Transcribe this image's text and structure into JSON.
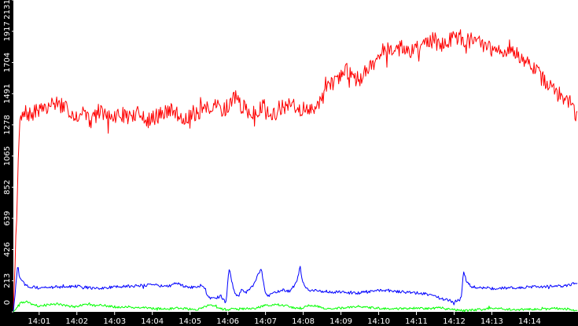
{
  "chart_data": {
    "type": "line",
    "title": "",
    "xlabel": "",
    "ylabel": "",
    "ylim": [
      0,
      2131
    ],
    "xlim": [
      "14:00:19",
      "14:15:17"
    ],
    "grid": false,
    "legend": "none",
    "background": "#ffffff",
    "frame_color": "#000000",
    "y_ticks": [
      "0",
      "213",
      "426",
      "639",
      "852",
      "1065",
      "1278",
      "1491",
      "1704",
      "1917",
      "2131"
    ],
    "x_ticks": [
      "14:01",
      "14:02",
      "14:03",
      "14:04",
      "14:05",
      "14:06",
      "14:07",
      "14:08",
      "14:09",
      "14:10",
      "14:11",
      "14:12",
      "14:13",
      "14:14"
    ],
    "x_time_unit": "seconds",
    "x_sample_interval": 10,
    "series": [
      {
        "color": "#ff0000",
        "x": [
          "14:00:19",
          "14:00:29",
          "14:00:39",
          "14:00:49",
          "14:00:59",
          "14:01:09",
          "14:01:19",
          "14:01:29",
          "14:01:39",
          "14:01:49",
          "14:01:59",
          "14:02:09",
          "14:02:19",
          "14:02:29",
          "14:02:39",
          "14:02:49",
          "14:02:59",
          "14:03:09",
          "14:03:19",
          "14:03:29",
          "14:03:39",
          "14:03:49",
          "14:03:59",
          "14:04:09",
          "14:04:19",
          "14:04:29",
          "14:04:39",
          "14:04:49",
          "14:04:59",
          "14:05:09",
          "14:05:19",
          "14:05:29",
          "14:05:39",
          "14:05:49",
          "14:05:59",
          "14:06:09",
          "14:06:19",
          "14:06:29",
          "14:06:39",
          "14:06:49",
          "14:06:59",
          "14:07:09",
          "14:07:19",
          "14:07:29",
          "14:07:39",
          "14:07:49",
          "14:07:59",
          "14:08:09",
          "14:08:19",
          "14:08:29",
          "14:08:39",
          "14:08:49",
          "14:08:59",
          "14:09:09",
          "14:09:19",
          "14:09:29",
          "14:09:39",
          "14:09:49",
          "14:09:59",
          "14:10:09",
          "14:10:19",
          "14:10:29",
          "14:10:39",
          "14:10:49",
          "14:10:59",
          "14:11:09",
          "14:11:19",
          "14:11:29",
          "14:11:39",
          "14:11:49",
          "14:11:59",
          "14:12:09",
          "14:12:19",
          "14:12:29",
          "14:12:39",
          "14:12:49",
          "14:12:59",
          "14:13:09",
          "14:13:19",
          "14:13:29",
          "14:13:39",
          "14:13:49",
          "14:13:59",
          "14:14:09",
          "14:14:19",
          "14:14:29",
          "14:14:39",
          "14:14:49",
          "14:14:59",
          "14:15:09",
          "14:15:17"
        ],
        "values": [
          0,
          1300,
          1360,
          1340,
          1390,
          1370,
          1420,
          1430,
          1390,
          1380,
          1340,
          1370,
          1360,
          1340,
          1380,
          1320,
          1330,
          1350,
          1340,
          1330,
          1360,
          1300,
          1320,
          1340,
          1360,
          1380,
          1350,
          1330,
          1330,
          1350,
          1370,
          1390,
          1410,
          1380,
          1400,
          1480,
          1420,
          1380,
          1350,
          1370,
          1420,
          1340,
          1370,
          1400,
          1430,
          1380,
          1390,
          1360,
          1410,
          1460,
          1530,
          1580,
          1620,
          1650,
          1610,
          1580,
          1640,
          1690,
          1750,
          1790,
          1800,
          1780,
          1820,
          1760,
          1810,
          1830,
          1850,
          1860,
          1820,
          1850,
          1870,
          1880,
          1850,
          1860,
          1840,
          1810,
          1800,
          1790,
          1760,
          1810,
          1760,
          1720,
          1690,
          1650,
          1600,
          1560,
          1510,
          1480,
          1450,
          1410,
          1300
        ]
      },
      {
        "color": "#0000ff",
        "x": [
          "14:00:19",
          "14:00:26",
          "14:00:29",
          "14:00:39",
          "14:00:49",
          "14:00:59",
          "14:01:29",
          "14:01:59",
          "14:02:29",
          "14:02:59",
          "14:03:29",
          "14:03:59",
          "14:04:19",
          "14:04:29",
          "14:04:39",
          "14:04:49",
          "14:04:59",
          "14:05:09",
          "14:05:19",
          "14:05:23",
          "14:05:29",
          "14:05:39",
          "14:05:49",
          "14:05:57",
          "14:05:59",
          "14:06:02",
          "14:06:06",
          "14:06:11",
          "14:06:17",
          "14:06:22",
          "14:06:29",
          "14:06:33",
          "14:06:38",
          "14:06:43",
          "14:06:48",
          "14:06:53",
          "14:06:58",
          "14:07:00",
          "14:07:04",
          "14:07:09",
          "14:07:19",
          "14:07:29",
          "14:07:39",
          "14:07:49",
          "14:07:55",
          "14:07:59",
          "14:08:04",
          "14:08:09",
          "14:08:29",
          "14:08:59",
          "14:09:29",
          "14:09:59",
          "14:10:29",
          "14:10:59",
          "14:11:19",
          "14:11:29",
          "14:11:39",
          "14:11:49",
          "14:11:59",
          "14:12:09",
          "14:12:12",
          "14:12:15",
          "14:12:20",
          "14:12:29",
          "14:12:59",
          "14:13:29",
          "14:13:59",
          "14:14:29",
          "14:14:59",
          "14:15:17"
        ],
        "values": [
          0,
          320,
          230,
          180,
          170,
          165,
          170,
          175,
          160,
          170,
          175,
          185,
          175,
          180,
          200,
          175,
          170,
          165,
          170,
          160,
          100,
          90,
          110,
          60,
          150,
          300,
          220,
          120,
          100,
          160,
          130,
          150,
          170,
          200,
          250,
          300,
          180,
          120,
          110,
          130,
          140,
          150,
          140,
          200,
          310,
          200,
          160,
          150,
          140,
          135,
          130,
          145,
          140,
          130,
          120,
          110,
          90,
          80,
          70,
          80,
          120,
          280,
          200,
          170,
          160,
          165,
          170,
          175,
          180,
          200
        ]
      },
      {
        "color": "#00ff00",
        "x": [
          "14:00:19",
          "14:00:29",
          "14:00:39",
          "14:00:49",
          "14:00:59",
          "14:01:09",
          "14:01:19",
          "14:01:29",
          "14:01:39",
          "14:01:49",
          "14:01:59",
          "14:02:09",
          "14:02:19",
          "14:02:29",
          "14:02:39",
          "14:02:49",
          "14:02:59",
          "14:03:09",
          "14:03:19",
          "14:03:29",
          "14:03:39",
          "14:03:49",
          "14:03:59",
          "14:04:19",
          "14:04:39",
          "14:04:59",
          "14:05:09",
          "14:05:19",
          "14:05:29",
          "14:05:39",
          "14:05:49",
          "14:05:59",
          "14:06:19",
          "14:06:39",
          "14:06:49",
          "14:06:59",
          "14:07:19",
          "14:07:39",
          "14:07:49",
          "14:07:59",
          "14:08:09",
          "14:08:19",
          "14:08:39",
          "14:08:59",
          "14:09:09",
          "14:09:29",
          "14:09:39",
          "14:09:59",
          "14:10:29",
          "14:10:59",
          "14:11:29",
          "14:11:39",
          "14:11:49",
          "14:11:59",
          "14:12:19",
          "14:12:39",
          "14:12:49",
          "14:12:59",
          "14:13:19",
          "14:13:39",
          "14:13:59",
          "14:14:19",
          "14:14:39",
          "14:14:59",
          "14:15:17"
        ],
        "values": [
          0,
          60,
          70,
          50,
          40,
          45,
          50,
          55,
          45,
          40,
          35,
          50,
          55,
          40,
          45,
          40,
          35,
          30,
          35,
          30,
          25,
          30,
          25,
          20,
          25,
          20,
          15,
          25,
          45,
          40,
          20,
          15,
          20,
          25,
          30,
          45,
          50,
          35,
          25,
          30,
          45,
          40,
          20,
          25,
          30,
          40,
          30,
          25,
          20,
          25,
          25,
          30,
          20,
          15,
          10,
          15,
          20,
          25,
          20,
          15,
          20,
          15,
          25,
          20,
          15
        ]
      }
    ]
  }
}
